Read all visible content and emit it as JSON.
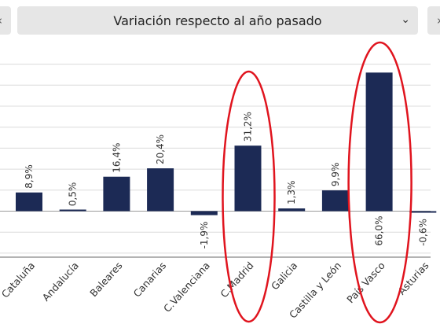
{
  "header": {
    "prev_icon": "chevron-left-icon",
    "next_icon": "chevron-right-icon",
    "selector_label": "Variación respecto al año pasado",
    "selector_icon": "chevron-down-icon",
    "prev_glyph": "‹",
    "next_glyph": "›",
    "chevron_glyph": "⌄"
  },
  "colors": {
    "bar": "#1c2a55",
    "grid": "#dcdcdc",
    "axis": "#9a9a9a",
    "highlight": "#e0141e",
    "text": "#333333"
  },
  "chart_data": {
    "type": "bar",
    "title": "",
    "xlabel": "",
    "ylabel": "",
    "categories": [
      "Cataluña",
      "Andalucía",
      "Baleares",
      "Canarias",
      "C.Valenciana",
      "C.Madrid",
      "Galicia",
      "Castilla y León",
      "País Vasco",
      "Asturias"
    ],
    "values": [
      8.9,
      0.5,
      16.4,
      20.4,
      -1.9,
      31.2,
      1.3,
      9.9,
      66.0,
      -0.6
    ],
    "value_labels": [
      "8,9%",
      "0,5%",
      "16,4%",
      "20,4%",
      "-1,9%",
      "31,2%",
      "1,3%",
      "9,9%",
      "66,0%",
      "-0,6%"
    ],
    "ylim": [
      -20,
      70
    ],
    "grid": true,
    "highlighted": [
      "C.Madrid",
      "País Vasco"
    ]
  }
}
